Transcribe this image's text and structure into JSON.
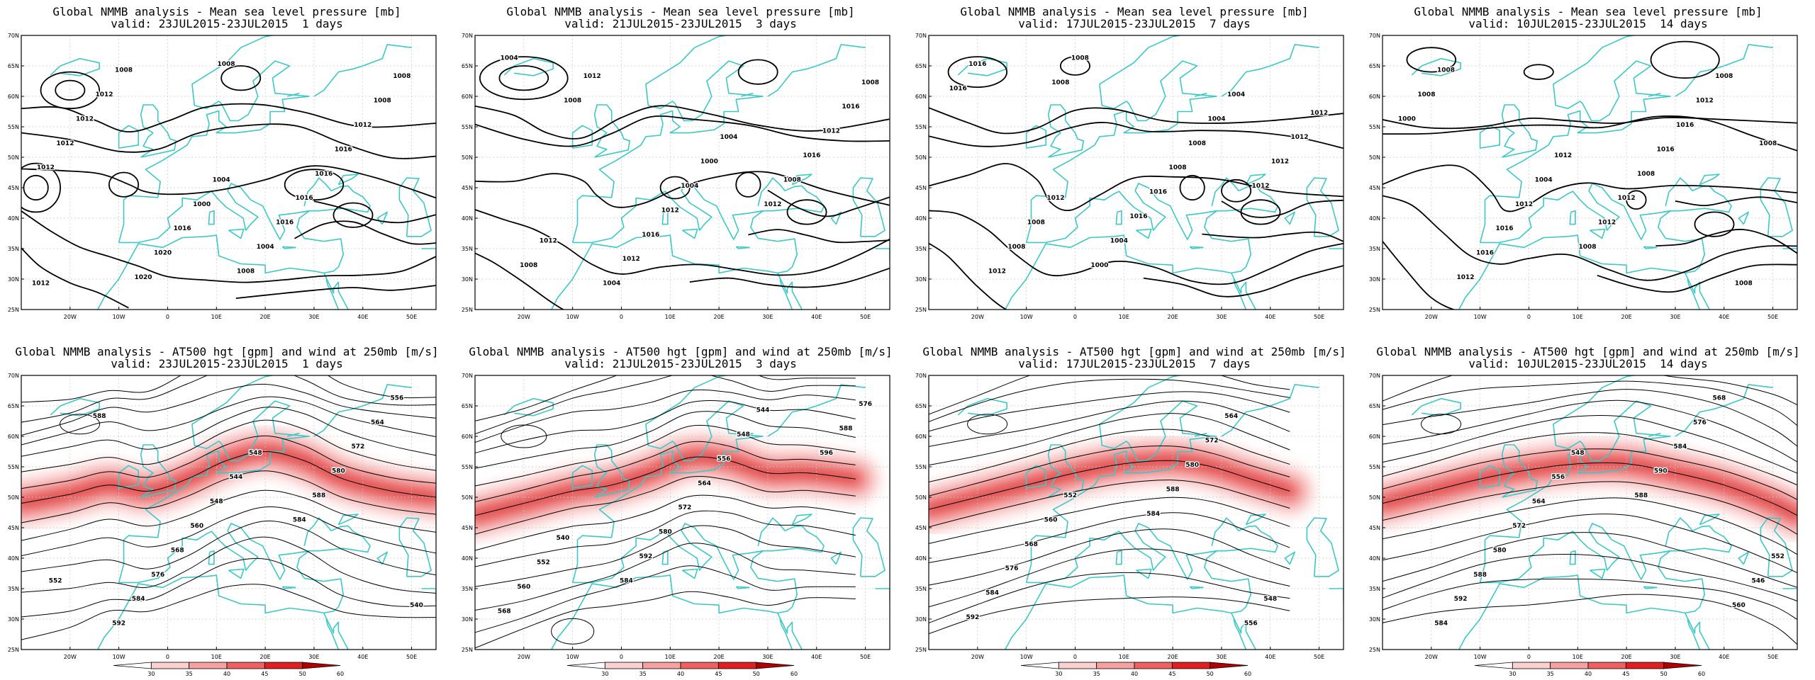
{
  "colors": {
    "coast": "#3cc8c8",
    "isoline": "#000000",
    "jet_light": "#f7b0b0",
    "jet_mid": "#ef4a4a",
    "jet_dark": "#c00000",
    "grid": "#c8c8c8"
  },
  "axis_labels": {
    "lat": [
      "70N",
      "65N",
      "60N",
      "55N",
      "50N",
      "45N",
      "40N",
      "35N",
      "30N",
      "25N"
    ],
    "lon": [
      "20W",
      "10W",
      "0",
      "10E",
      "20E",
      "30E",
      "40E",
      "50E"
    ]
  },
  "colorbar": {
    "ticks": [
      "30",
      "35",
      "40",
      "45",
      "50",
      "60"
    ]
  },
  "panels": [
    {
      "id": "mslp-1d",
      "title": "Global NMMB analysis - Mean sea level pressure [mb]",
      "valid": "valid: 23JUL2015-23JUL2015  1 days",
      "labels": [
        "1012",
        "1004",
        "1008",
        "1000",
        "1008",
        "1016",
        "1012",
        "1020",
        "1016",
        "1020",
        "1016",
        "1008",
        "1016",
        "1012",
        "1016",
        "1012",
        "1004",
        "1012",
        "1008",
        "1012",
        "1008"
      ]
    },
    {
      "id": "mslp-3d",
      "title": "Global NMMB analysis - Mean sea level pressure [mb]",
      "valid": "valid: 21JUL2015-23JUL2015  3 days",
      "labels": [
        "1012",
        "1004",
        "1008",
        "1000",
        "1004",
        "1004",
        "1008",
        "1012",
        "1016",
        "1016",
        "1012",
        "1012",
        "1016",
        "1004",
        "1008",
        "1012",
        "1012",
        "1008"
      ]
    },
    {
      "id": "mslp-7d",
      "title": "Global NMMB analysis - Mean sea level pressure [mb]",
      "valid": "valid: 17JUL2015-23JUL2015  7 days",
      "labels": [
        "1012",
        "1004",
        "1008",
        "1004",
        "1008",
        "1008",
        "1012",
        "1008",
        "1016",
        "1016",
        "1016",
        "1016",
        "1012",
        "1004",
        "1012",
        "1000",
        "1012",
        "1008",
        "1012",
        "1008"
      ]
    },
    {
      "id": "mslp-14d",
      "title": "Global NMMB analysis - Mean sea level pressure [mb]",
      "valid": "valid: 10JUL2015-23JUL2015  14 days",
      "labels": [
        "1012",
        "1008",
        "1004",
        "1008",
        "1012",
        "1012",
        "1016",
        "1016",
        "1016",
        "1016",
        "1012",
        "1008",
        "1008",
        "1012",
        "1008",
        "1012",
        "1000",
        "1008",
        "1008"
      ]
    },
    {
      "id": "z500-1d",
      "title": "Global NMMB analysis - AT500 hgt [gpm] and wind at 250mb [m/s]",
      "valid": "valid: 23JUL2015-23JUL2015  1 days",
      "labels": [
        "548",
        "552",
        "544",
        "540",
        "548",
        "556",
        "560",
        "564",
        "568",
        "572",
        "576",
        "580",
        "584",
        "588",
        "592",
        "584",
        "588"
      ]
    },
    {
      "id": "z500-3d",
      "title": "Global NMMB analysis - AT500 hgt [gpm] and wind at 250mb [m/s]",
      "valid": "valid: 21JUL2015-23JUL2015  3 days",
      "labels": [
        "544",
        "540",
        "548",
        "552",
        "556",
        "560",
        "564",
        "568",
        "572",
        "576",
        "580",
        "588",
        "592",
        "596",
        "584"
      ]
    },
    {
      "id": "z500-7d",
      "title": "Global NMMB analysis - AT500 hgt [gpm] and wind at 250mb [m/s]",
      "valid": "valid: 17JUL2015-23JUL2015  7 days",
      "labels": [
        "548",
        "552",
        "556",
        "560",
        "564",
        "568",
        "572",
        "576",
        "580",
        "584",
        "588",
        "592",
        "584"
      ]
    },
    {
      "id": "z500-14d",
      "title": "Global NMMB analysis - AT500 hgt [gpm] and wind at 250mb [m/s]",
      "valid": "valid: 10JUL2015-23JUL2015  14 days",
      "labels": [
        "552",
        "548",
        "546",
        "556",
        "560",
        "564",
        "568",
        "572",
        "576",
        "580",
        "584",
        "588",
        "590",
        "592",
        "588",
        "584"
      ]
    }
  ]
}
